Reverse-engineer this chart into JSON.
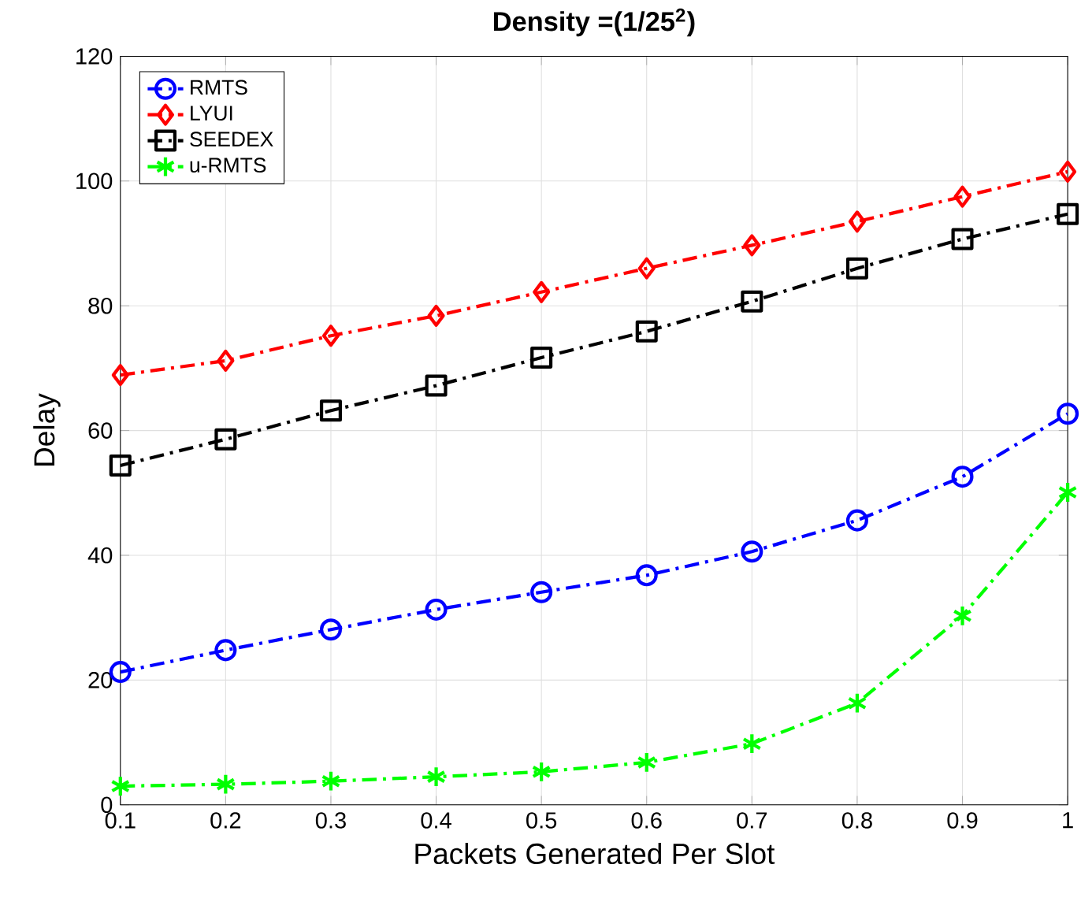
{
  "chart_data": {
    "type": "line",
    "title": "Density =(1/25$^{2}$)",
    "xlabel": "Packets Generated Per Slot",
    "ylabel": "Delay",
    "x": [
      0.1,
      0.2,
      0.3,
      0.4,
      0.5,
      0.6,
      0.7,
      0.8,
      0.9,
      1
    ],
    "series": [
      {
        "name": "RMTS",
        "color": "#0000ff",
        "marker": "circle",
        "values": [
          21.3,
          24.8,
          28.1,
          31.3,
          34.1,
          36.8,
          40.6,
          45.6,
          52.6,
          62.7
        ]
      },
      {
        "name": "LYUI",
        "color": "#ff0000",
        "marker": "diamond",
        "values": [
          68.9,
          71.2,
          75.2,
          78.4,
          82.2,
          86,
          89.7,
          93.5,
          97.5,
          101.5
        ]
      },
      {
        "name": "SEEDEX",
        "color": "#000000",
        "marker": "square",
        "values": [
          54.4,
          58.6,
          63.2,
          67.2,
          71.7,
          75.9,
          80.7,
          86,
          90.7,
          94.7
        ]
      },
      {
        "name": "u-RMTS",
        "color": "#00ff00",
        "marker": "cross",
        "values": [
          3.0,
          3.3,
          3.8,
          4.5,
          5.3,
          6.8,
          9.8,
          16.3,
          30.3,
          50.1
        ]
      }
    ],
    "xlim": [
      0.1,
      1
    ],
    "ylim": [
      0,
      120
    ],
    "xticks": [
      0.1,
      0.2,
      0.3,
      0.4,
      0.5,
      0.6,
      0.7,
      0.8,
      0.9,
      1
    ],
    "yticks": [
      0,
      20,
      40,
      60,
      80,
      100,
      120
    ],
    "grid": true,
    "legend": "top left",
    "line_style": "dashdot"
  }
}
